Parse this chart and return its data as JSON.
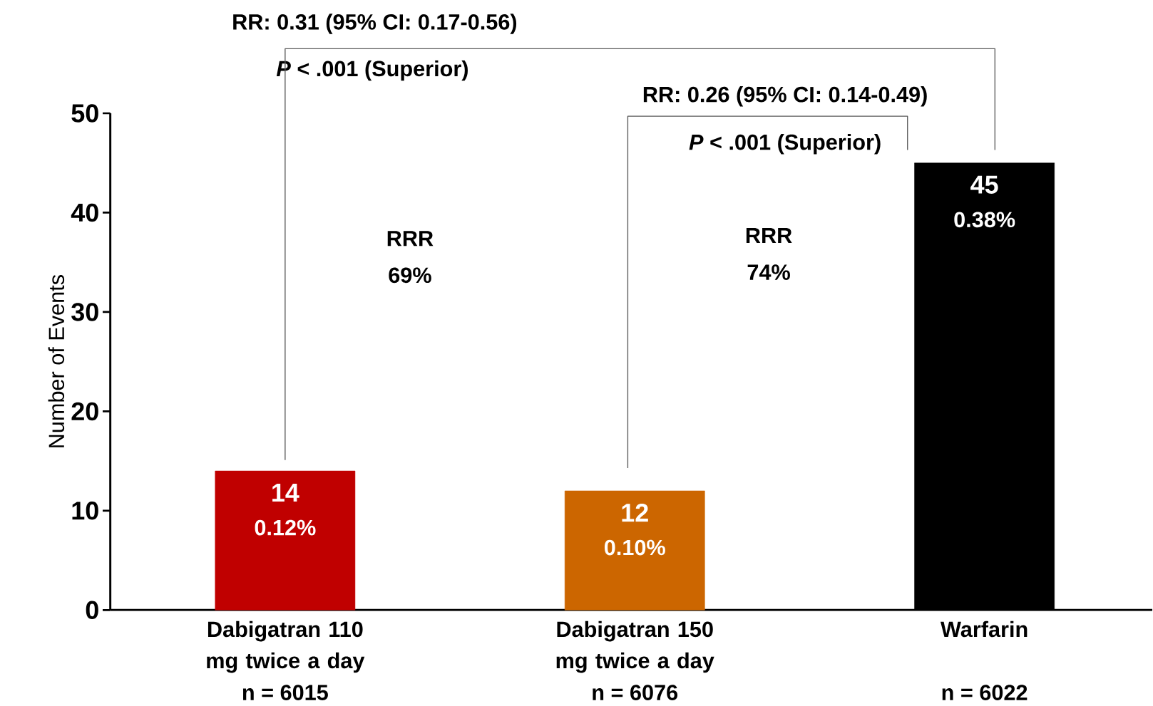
{
  "chart_data": {
    "type": "bar",
    "ylabel": "Number of Events",
    "categories": [
      "Dabigatran 110 mg twice a day",
      "Dabigatran 150 mg twice a day",
      "Warfarin"
    ],
    "values": [
      14,
      12,
      45
    ],
    "colors": [
      "#c00000",
      "#cc6600",
      "#000000"
    ],
    "ylim": [
      0,
      50
    ],
    "yticks": [
      0,
      10,
      20,
      30,
      40,
      50
    ],
    "data_labels": true,
    "grid": false,
    "annotations": [
      "RR: 0.31 (95% CI: 0.17-0.56)",
      "*P* < .001 (Superior)",
      "RR: 0.26 (95% CI: 0.14-0.49)",
      "*P* < .001 (Superior)",
      "RRR",
      "69%",
      "RRR",
      "74%",
      {
        "text": "0.12%",
        "x": "Dabigatran 110 mg twice a day",
        "y": 14
      },
      {
        "text": "0.10%",
        "x": "Dabigatran 150 mg twice a day",
        "y": 12
      },
      {
        "text": "0.38%",
        "x": "Warfarin",
        "y": 45
      },
      "n = 6015",
      "n = 6076",
      "n = 6022"
    ]
  }
}
